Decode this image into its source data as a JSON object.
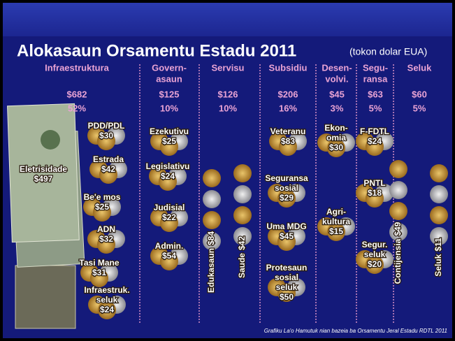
{
  "title": "Alokasaun Orsamentu Estadu 2011",
  "unit": "(tokon dolar EUA)",
  "columns": [
    {
      "header": [
        "Infraestruktura"
      ],
      "amount": "$682",
      "share": "52%",
      "items": [
        {
          "label": [
            "Eletrisidade"
          ],
          "amount": "$497"
        },
        {
          "label": [
            "PDD/PDL"
          ],
          "amount": "$30"
        },
        {
          "label": [
            "Estrada"
          ],
          "amount": "$42"
        },
        {
          "label": [
            "Be'e mos"
          ],
          "amount": "$25"
        },
        {
          "label": [
            "ADN"
          ],
          "amount": "$32"
        },
        {
          "label": [
            "Tasi Mane"
          ],
          "amount": "$31"
        },
        {
          "label": [
            "Infraestruk.",
            "seluk"
          ],
          "amount": "$24"
        }
      ]
    },
    {
      "header": [
        "Govern-",
        "asaun"
      ],
      "amount": "$125",
      "share": "10%",
      "items": [
        {
          "label": [
            "Ezekutivu"
          ],
          "amount": "$25"
        },
        {
          "label": [
            "Legislativu"
          ],
          "amount": "$24"
        },
        {
          "label": [
            "Judisial"
          ],
          "amount": "$22"
        },
        {
          "label": [
            "Admin."
          ],
          "amount": "$54"
        }
      ]
    },
    {
      "header": [
        "Servisu"
      ],
      "amount": "$126",
      "share": "10%",
      "items": [
        {
          "label": [
            "Edukasaun"
          ],
          "amount": "$84"
        },
        {
          "label": [
            "Saude"
          ],
          "amount": "$42"
        }
      ]
    },
    {
      "header": [
        "Subsidiu"
      ],
      "amount": "$206",
      "share": "16%",
      "items": [
        {
          "label": [
            "Veteranu"
          ],
          "amount": "$83"
        },
        {
          "label": [
            "Seguransa",
            "sosial"
          ],
          "amount": "$29"
        },
        {
          "label": [
            "Uma MDG"
          ],
          "amount": "$45"
        },
        {
          "label": [
            "Protesaun",
            "sosial",
            "seluk"
          ],
          "amount": "$50"
        }
      ]
    },
    {
      "header": [
        "Desen-",
        "volvi."
      ],
      "amount": "$45",
      "share": "3%",
      "items": [
        {
          "label": [
            "Ekon-",
            "omia"
          ],
          "amount": "$30"
        },
        {
          "label": [
            "Agri-",
            "kultura"
          ],
          "amount": "$15"
        }
      ]
    },
    {
      "header": [
        "Segu-",
        "ransa"
      ],
      "amount": "$63",
      "share": "5%",
      "items": [
        {
          "label": [
            "F-FDTL"
          ],
          "amount": "$24"
        },
        {
          "label": [
            "PNTL"
          ],
          "amount": "$18"
        },
        {
          "label": [
            "Segur.",
            "seluk"
          ],
          "amount": "$20"
        }
      ]
    },
    {
      "header": [
        "Seluk"
      ],
      "amount": "$60",
      "share": "5%",
      "items": [
        {
          "label": [
            "Contijensia"
          ],
          "amount": "$49"
        },
        {
          "label": [
            "Seluk"
          ],
          "amount": "$11"
        }
      ]
    }
  ],
  "footer": "Grafiku La'o Hamutuk nian bazeia ba Orsamentu Jeral Estadu RDTL 2011"
}
